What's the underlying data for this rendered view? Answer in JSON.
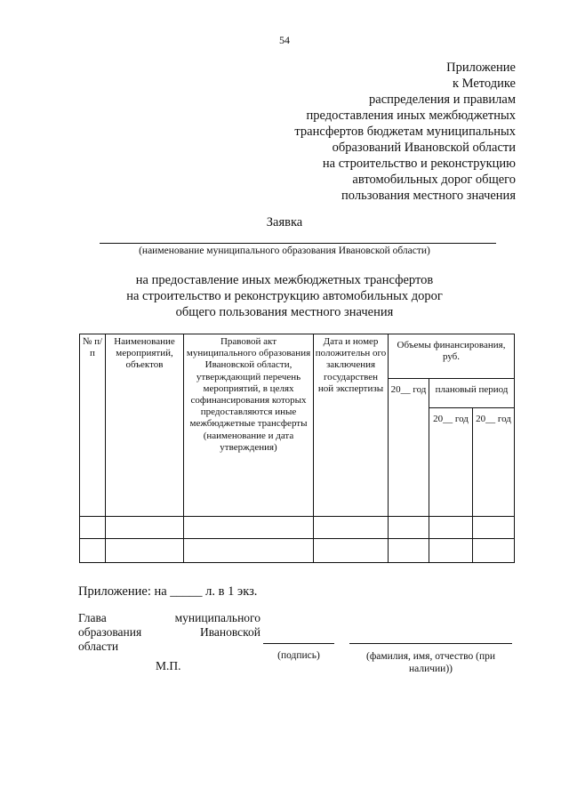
{
  "page_number": "54",
  "appendix_lines": [
    "Приложение",
    "к Методике",
    "распределения и правилам",
    "предоставления иных межбюджетных",
    "трансфертов бюджетам муниципальных",
    "образований Ивановской области",
    "на строительство и реконструкцию",
    "автомобильных дорог общего",
    "пользования местного значения"
  ],
  "title": "Заявка",
  "mo_caption": "(наименование муниципального образования Ивановской области)",
  "subject_lines": [
    "на предоставление иных межбюджетных трансфертов",
    "на строительство и реконструкцию автомобильных дорог",
    "общего пользования местного значения"
  ],
  "table": {
    "col_num": "№ п/п",
    "col_name": "Наименование мероприятий, объектов",
    "col_act": "Правовой акт муниципального образования Ивановской области, утверждающий перечень мероприятий, в целях софинансирования которых предоставляются иные межбюджетные трансферты (наименование и дата утверждения)",
    "col_date": "Дата и номер положительн ого заключения государствен ной экспертизы",
    "col_volume": "Объемы финансирования, руб.",
    "col_year": "20__ год",
    "col_plan": "плановый период",
    "col_plan_y1": "20__ год",
    "col_plan_y2": "20__ год"
  },
  "attachment": "Приложение: на _____ л. в 1 экз.",
  "head_lines": [
    "Глава муниципального",
    "образования Ивановской",
    "области"
  ],
  "stamp": "М.П.",
  "signature_caption": "(подпись)",
  "fio_caption": "(фамилия, имя, отчество (при наличии))"
}
